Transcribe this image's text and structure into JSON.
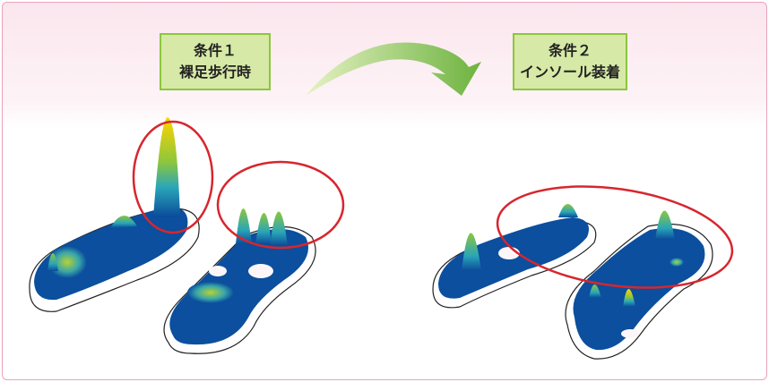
{
  "conditions": [
    {
      "title": "条件１",
      "label": "裸足歩行時"
    },
    {
      "title": "条件２",
      "label": "インソール装着"
    }
  ]
}
